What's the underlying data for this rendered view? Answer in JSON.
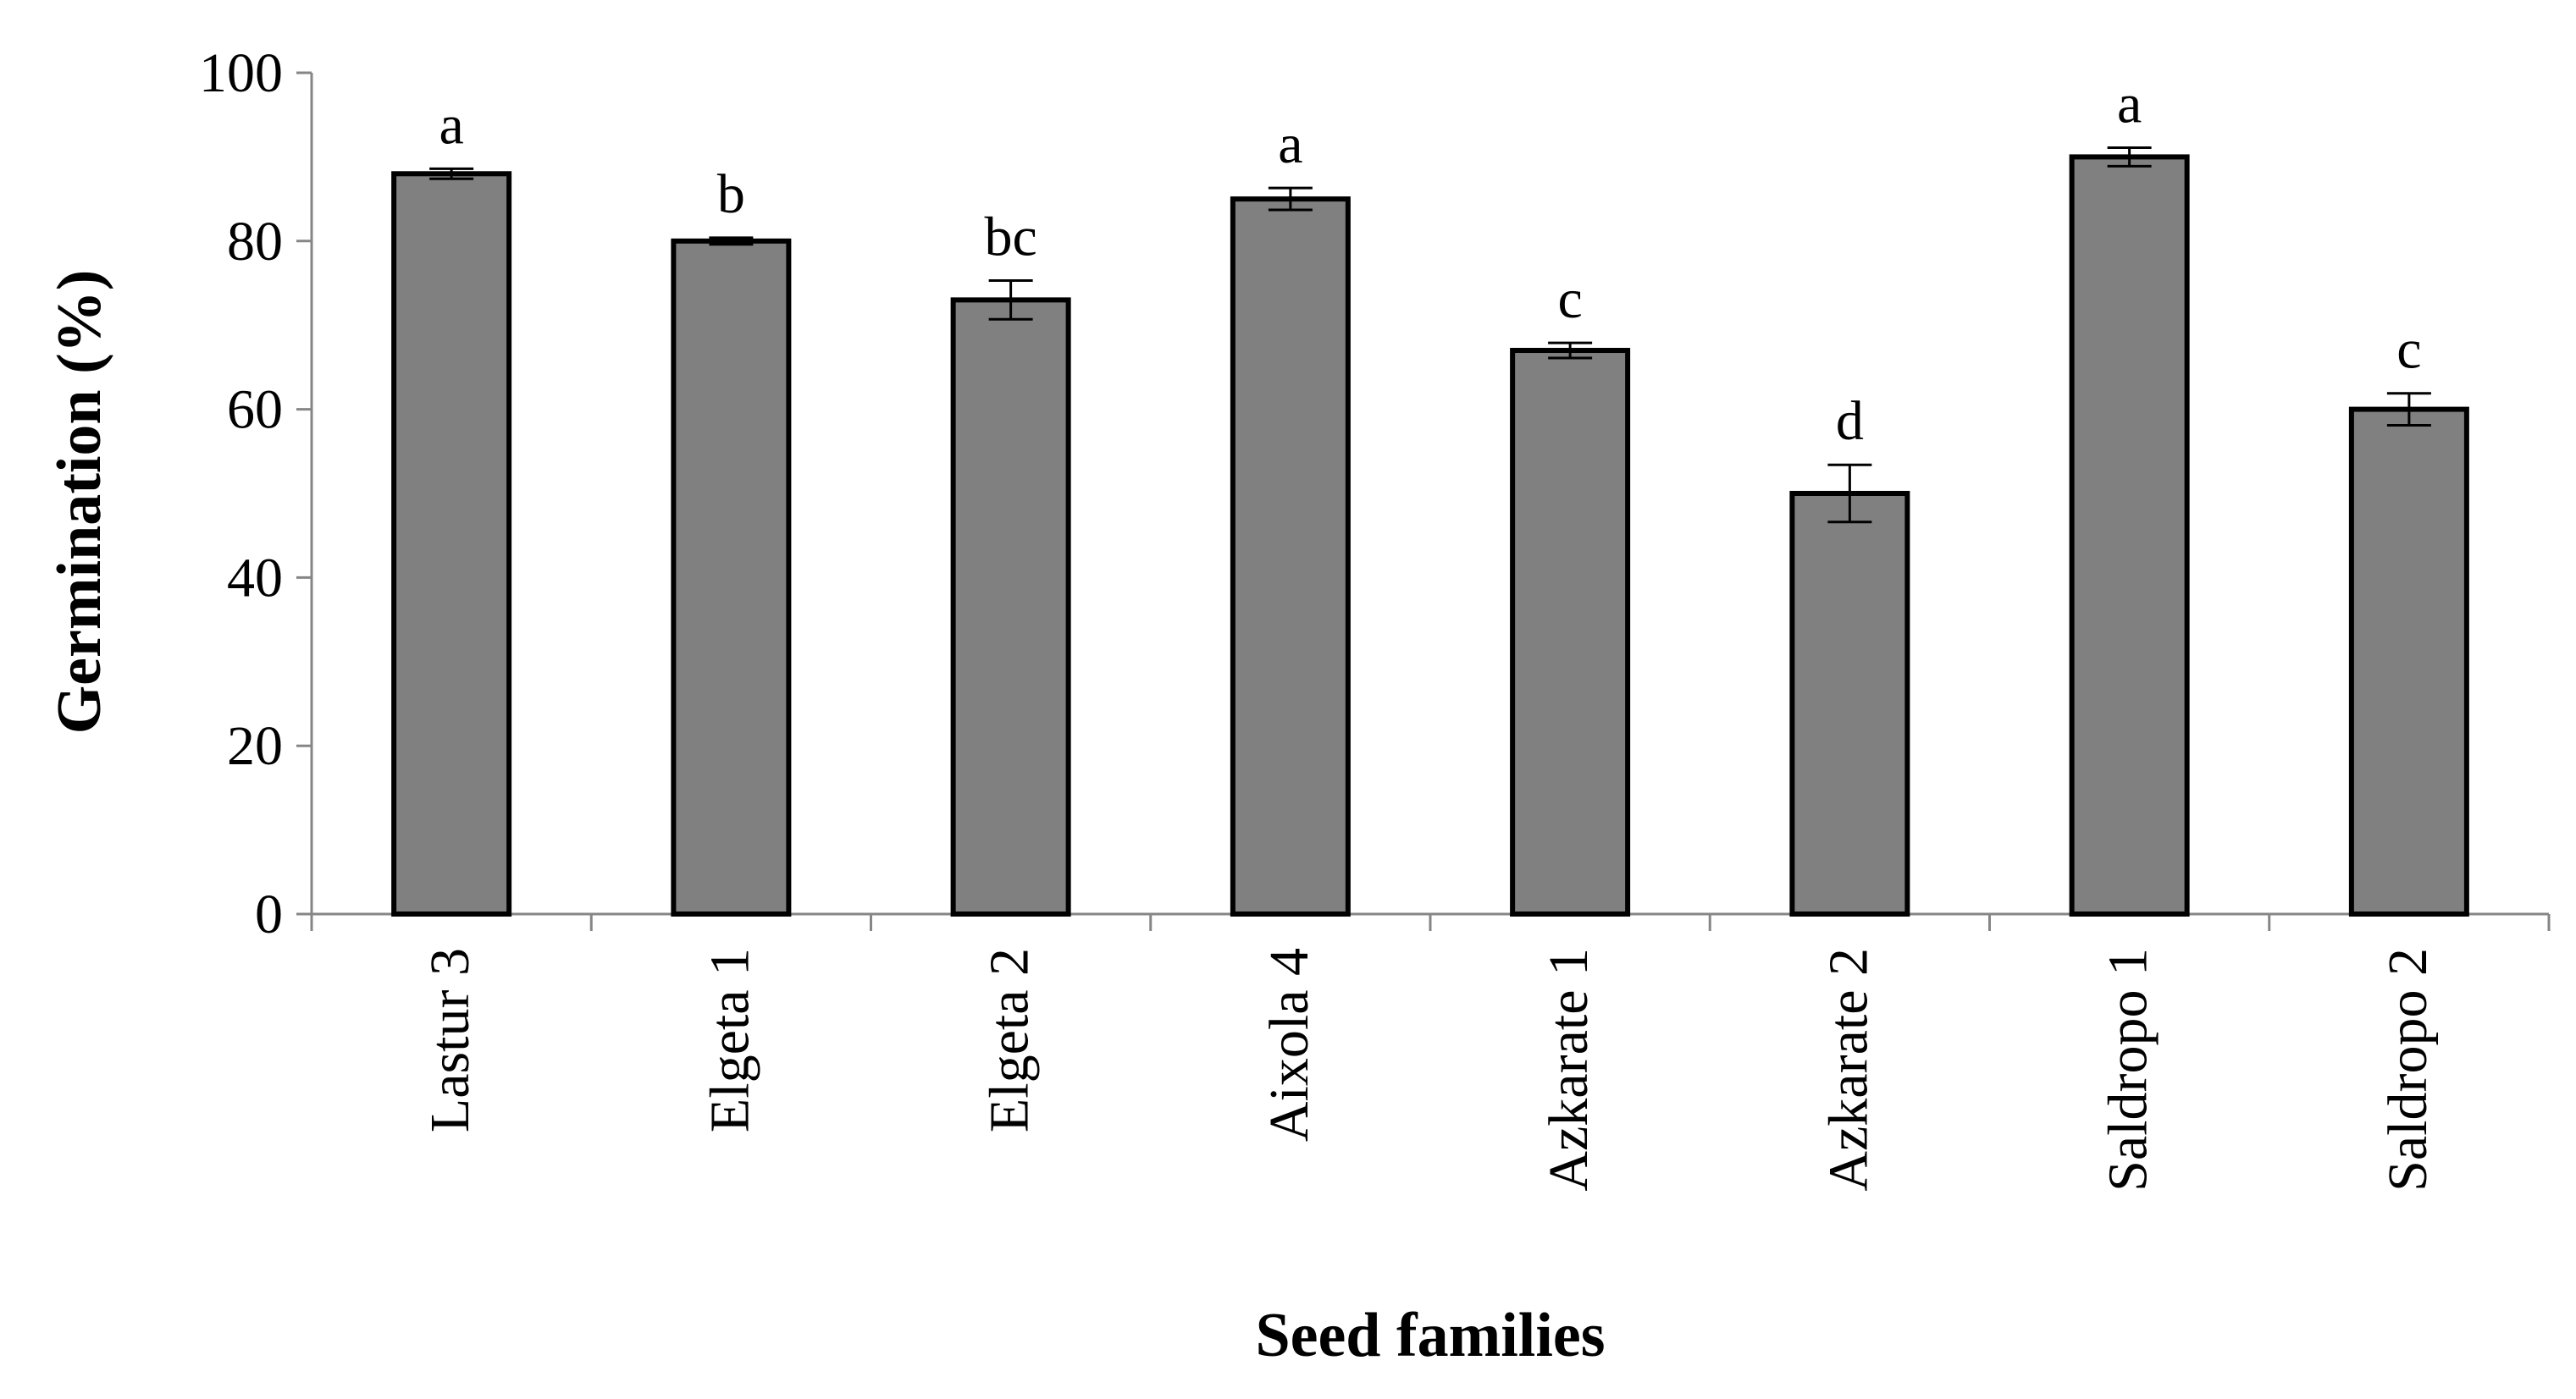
{
  "chart_data": {
    "type": "bar",
    "title": "",
    "xlabel": "Seed families",
    "ylabel": "Germination (%)",
    "ylim": [
      0,
      100
    ],
    "yticks": [
      0,
      20,
      40,
      60,
      80,
      100
    ],
    "ytick_labels": [
      "0",
      "20",
      "40",
      "60",
      "80",
      "100"
    ],
    "grid": false,
    "legend": "none",
    "categories": [
      "Lastur 3",
      "Elgeta 1",
      "Elgeta 2",
      "Aixola 4",
      "Azkarate 1",
      "Azkarate 2",
      "Saldropo 1",
      "Saldropo 2"
    ],
    "values": [
      88,
      80,
      73,
      85,
      67,
      50,
      90,
      60
    ],
    "errors": [
      0.6,
      0.4,
      2.3,
      1.3,
      0.9,
      3.4,
      1.1,
      1.9
    ],
    "annotations": [
      "a",
      "b",
      "bc",
      "a",
      "c",
      "d",
      "a",
      "c"
    ],
    "bar_color": "#808080",
    "bar_edge_color": "#000000"
  }
}
